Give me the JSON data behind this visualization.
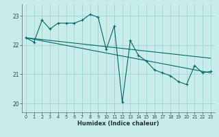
{
  "xlabel": "Humidex (Indice chaleur)",
  "bg_color": "#c8ecea",
  "grid_color": "#a8d8d4",
  "line_color": "#006666",
  "xlim": [
    -0.5,
    23.5
  ],
  "ylim": [
    19.7,
    23.4
  ],
  "yticks": [
    20,
    21,
    22,
    23
  ],
  "xticks": [
    0,
    1,
    2,
    3,
    4,
    5,
    6,
    7,
    8,
    9,
    10,
    11,
    12,
    13,
    14,
    15,
    16,
    17,
    18,
    19,
    20,
    21,
    22,
    23
  ],
  "series1_x": [
    0,
    1,
    2,
    3,
    4,
    5,
    6,
    7,
    8,
    9,
    10,
    11,
    12,
    13,
    14,
    15,
    16,
    17,
    18,
    19,
    20,
    21,
    22,
    23
  ],
  "series1_y": [
    22.25,
    22.1,
    22.85,
    22.55,
    22.75,
    22.75,
    22.75,
    22.85,
    23.05,
    22.95,
    21.85,
    22.65,
    20.05,
    22.15,
    21.65,
    21.45,
    21.15,
    21.05,
    20.95,
    20.75,
    20.65,
    21.3,
    21.05,
    21.1
  ],
  "series2_x": [
    0,
    23
  ],
  "series2_y": [
    22.25,
    21.55
  ],
  "series3_x": [
    0,
    23
  ],
  "series3_y": [
    22.25,
    21.05
  ]
}
